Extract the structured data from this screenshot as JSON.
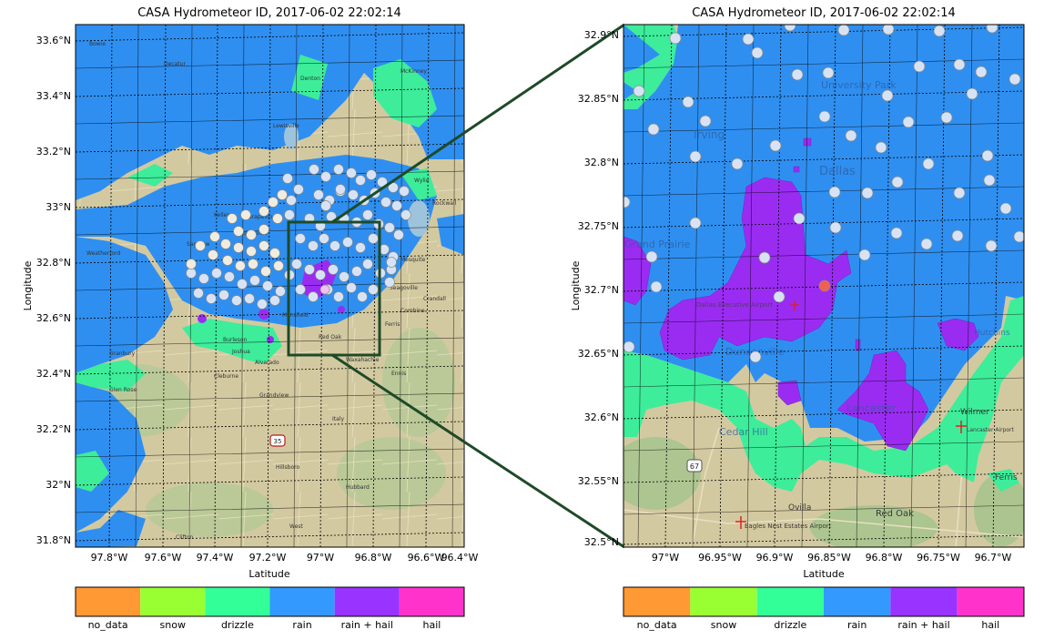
{
  "panels": {
    "left": {
      "title": "CASA Hydrometeor ID, 2017-06-02 22:02:14",
      "xlabel": "Latitude",
      "ylabel": "Longitude",
      "x_ticks": [
        "97.8°W",
        "97.6°W",
        "97.4°W",
        "97.2°W",
        "97°W",
        "96.8°W",
        "96.6°W",
        "96.4°W"
      ],
      "y_ticks": [
        "33.6°N",
        "33.4°N",
        "33.2°N",
        "33°N",
        "32.8°N",
        "32.6°N",
        "32.4°N",
        "32.2°N",
        "32°N",
        "31.8°N"
      ],
      "place_labels": [
        "Bowie",
        "Decatur",
        "Denton",
        "Lewisville",
        "McKinney",
        "Wylie",
        "Rockwall",
        "Mesquite",
        "Seagoville",
        "Crandall",
        "Combine",
        "Ferris",
        "Red Oak",
        "Waxahachie",
        "Ennis",
        "Italy",
        "Hillsboro",
        "Hubbard",
        "West",
        "Clifton",
        "Glen Rose",
        "Cleburne",
        "Alvarado",
        "Grandview",
        "Burleson",
        "Keller",
        "Grapevine",
        "Colleyville",
        "Saginaw",
        "Weatherford",
        "Granbury",
        "Joshua",
        "Mansfield"
      ]
    },
    "right": {
      "title": "CASA Hydrometeor ID, 2017-06-02 22:02:14",
      "xlabel": "Latitude",
      "ylabel": "Longitude",
      "x_ticks": [
        "97°W",
        "96.95°W",
        "96.9°W",
        "96.85°W",
        "96.8°W",
        "96.75°W",
        "96.7°W"
      ],
      "y_ticks": [
        "32.9°N",
        "32.85°N",
        "32.8°N",
        "32.75°N",
        "32.7°N",
        "32.65°N",
        "32.6°N",
        "32.55°N",
        "32.5°N"
      ],
      "place_labels": [
        "Irving",
        "University Park",
        "Dallas",
        "Grand Prairie",
        "Duncanville",
        "Cedar Hill",
        "Lancaster",
        "Wilmer",
        "Lancaster Airport",
        "Ferris",
        "Ovilla",
        "Red Oak",
        "Eagles Nest Estates Airport",
        "Hutchins",
        "Dallas Executive Airport"
      ]
    }
  },
  "colorbar": {
    "labels": [
      "no_data",
      "snow",
      "drizzle",
      "rain",
      "rain + hail",
      "hail"
    ],
    "colors": [
      "#ff9933",
      "#99ff33",
      "#33ff99",
      "#3399ff",
      "#9933ff",
      "#ff33cc"
    ]
  },
  "basemap_colors": {
    "land": "#d3c9a0",
    "forest": "#a8c48e",
    "water": "#9ec3dc",
    "rain": "#2f8ff0",
    "drizzle": "#3ded9a",
    "rain_hail": "#9a2cf2",
    "station": "#d7e3f4",
    "station_hail": "#f06050"
  },
  "legend_box_color": "#1e4a28",
  "highway_shields": [
    "35",
    "67"
  ]
}
